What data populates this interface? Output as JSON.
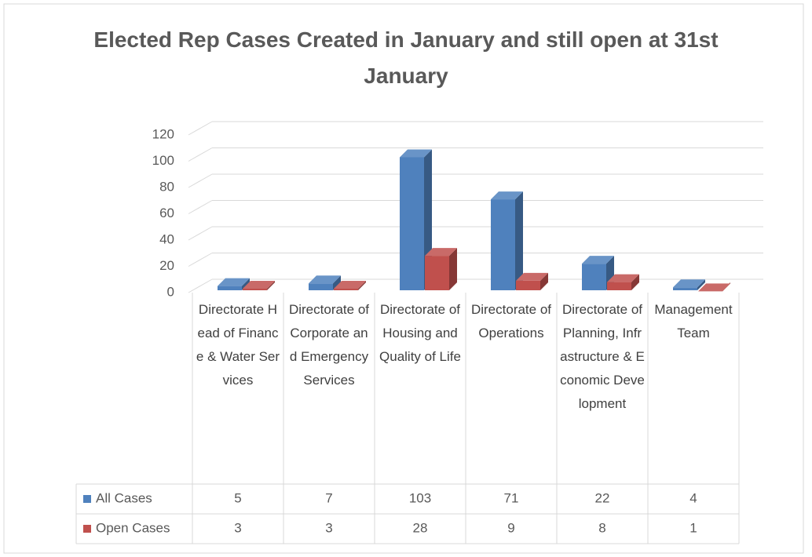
{
  "chart_data": {
    "type": "bar3d",
    "title": "Elected Rep Cases Created in January and still open at 31st January",
    "categories": [
      "Directorate Head of Finance & Water Services",
      "Directorate of Corporate and Emergency Services",
      "Directorate of Housing and Quality of Life",
      "Directorate of Operations",
      "Directorate of Planning, Infrastructure & Economic Development",
      "Management Team"
    ],
    "series": [
      {
        "name": "All Cases",
        "color": "#4f81bd",
        "values": [
          5,
          7,
          103,
          71,
          22,
          4
        ]
      },
      {
        "name": "Open Cases",
        "color": "#c0504d",
        "values": [
          3,
          3,
          28,
          9,
          8,
          1
        ]
      }
    ],
    "ylim": [
      0,
      120
    ],
    "yticks": [
      0,
      20,
      40,
      60,
      80,
      100,
      120
    ],
    "grid": true,
    "data_table": true
  }
}
